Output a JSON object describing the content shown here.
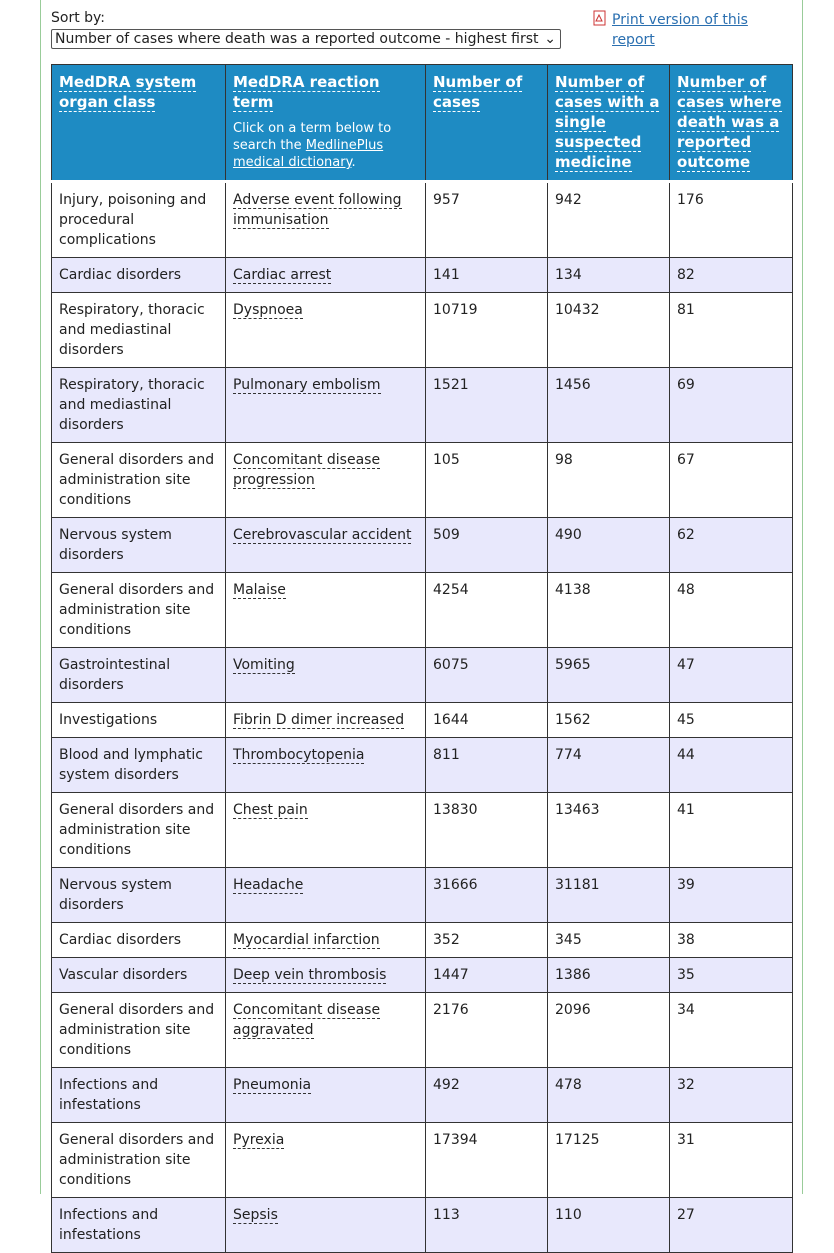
{
  "sort_by": {
    "label": "Sort by:",
    "selected": "Number of cases where death was a reported outcome - highest first"
  },
  "print_link": "Print version of this report",
  "table": {
    "headers": [
      "MedDRA system organ class",
      "MedDRA reaction term",
      "Number of cases",
      "Number of cases with a single suspected medicine",
      "Number of cases where death was a reported outcome"
    ],
    "header_note": {
      "before": "Click on a term below to search the ",
      "link": "MedlinePlus medical dictionary",
      "after": "."
    },
    "rows": [
      [
        "Injury, poisoning and procedural complications",
        "Adverse event following immunisation",
        957,
        942,
        176
      ],
      [
        "Cardiac disorders",
        "Cardiac arrest",
        141,
        134,
        82
      ],
      [
        "Respiratory, thoracic and mediastinal disorders",
        "Dyspnoea",
        10719,
        10432,
        81
      ],
      [
        "Respiratory, thoracic and mediastinal disorders",
        "Pulmonary embolism",
        1521,
        1456,
        69
      ],
      [
        "General disorders and administration site conditions",
        "Concomitant disease progression",
        105,
        98,
        67
      ],
      [
        "Nervous system disorders",
        "Cerebrovascular accident",
        509,
        490,
        62
      ],
      [
        "General disorders and administration site conditions",
        "Malaise",
        4254,
        4138,
        48
      ],
      [
        "Gastrointestinal disorders",
        "Vomiting",
        6075,
        5965,
        47
      ],
      [
        "Investigations",
        "Fibrin D dimer increased",
        1644,
        1562,
        45
      ],
      [
        "Blood and lymphatic system disorders",
        "Thrombocytopenia",
        811,
        774,
        44
      ],
      [
        "General disorders and administration site conditions",
        "Chest pain",
        13830,
        13463,
        41
      ],
      [
        "Nervous system disorders",
        "Headache",
        31666,
        31181,
        39
      ],
      [
        "Cardiac disorders",
        "Myocardial infarction",
        352,
        345,
        38
      ],
      [
        "Vascular disorders",
        "Deep vein thrombosis",
        1447,
        1386,
        35
      ],
      [
        "General disorders and administration site conditions",
        "Concomitant disease aggravated",
        2176,
        2096,
        34
      ],
      [
        "Infections and infestations",
        "Pneumonia",
        492,
        478,
        32
      ],
      [
        "General disorders and administration site conditions",
        "Pyrexia",
        17394,
        17125,
        31
      ],
      [
        "Infections and infestations",
        "Sepsis",
        113,
        110,
        27
      ]
    ]
  }
}
